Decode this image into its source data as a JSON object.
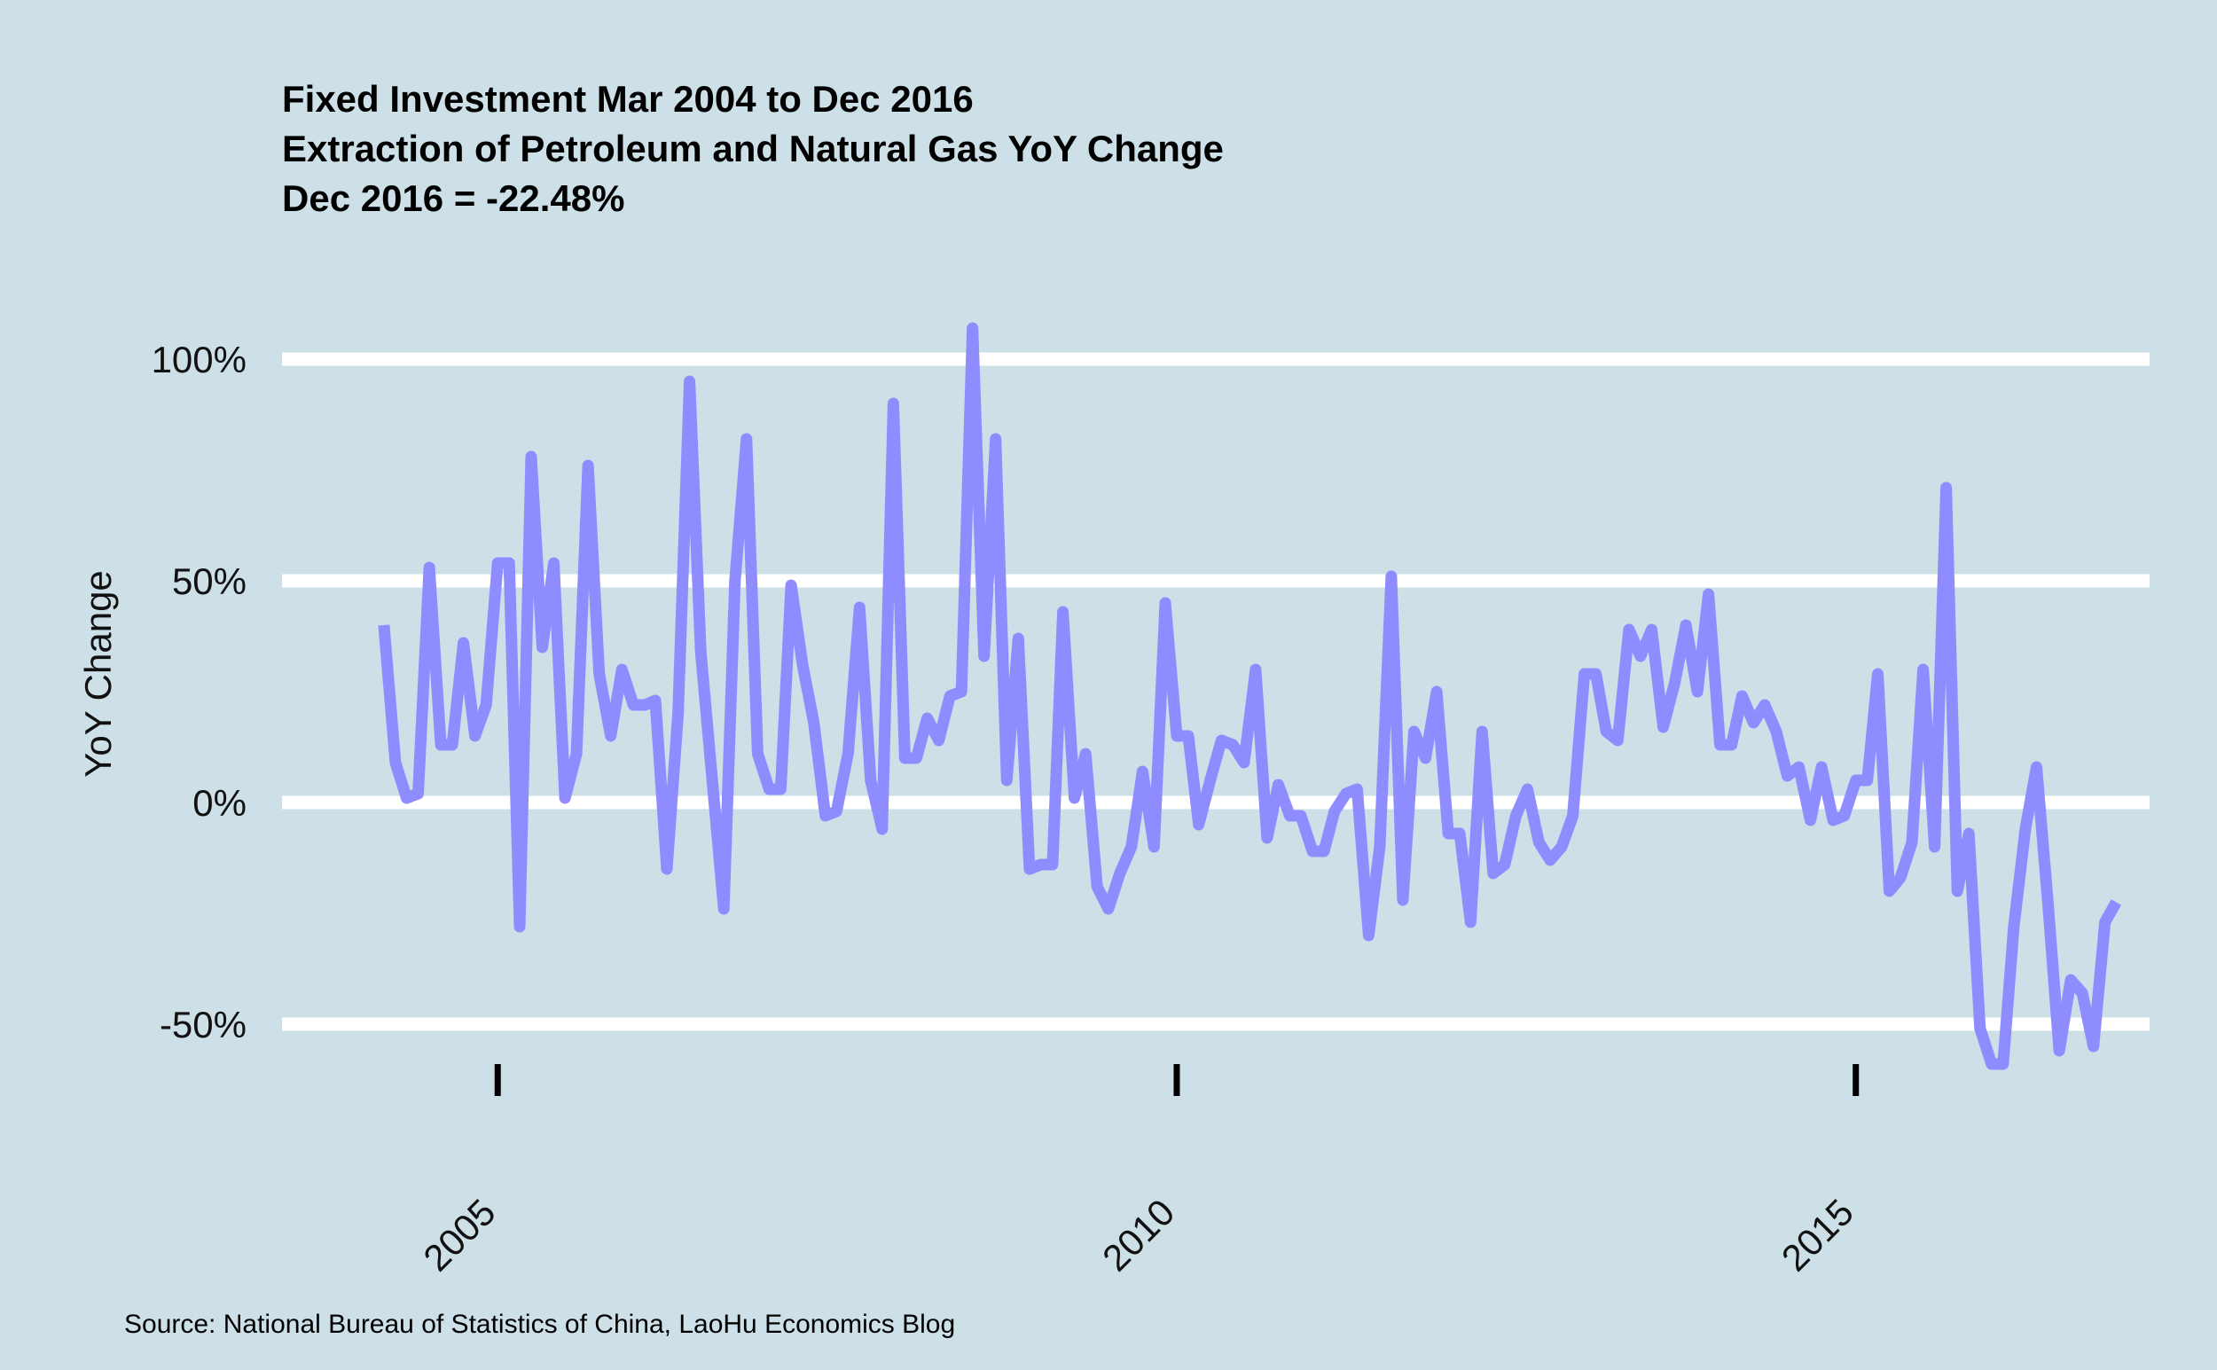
{
  "chart_data": {
    "type": "line",
    "title_lines": [
      "Fixed Investment Mar 2004 to Dec 2016",
      "Extraction of Petroleum and Natural Gas YoY Change",
      "Dec 2016 = -22.48%"
    ],
    "xlabel": "",
    "ylabel": "YoY Change",
    "source": "Source: National Bureau of Statistics of China, LaoHu Economics Blog",
    "xlim": [
      "2003-06-01",
      "2017-03-01"
    ],
    "ylim": [
      -60,
      115
    ],
    "x_ticks": [
      {
        "value": "2005-01-01",
        "label": "2005"
      },
      {
        "value": "2010-01-01",
        "label": "2010"
      },
      {
        "value": "2015-01-01",
        "label": "2015"
      }
    ],
    "y_ticks": [
      {
        "value": 100,
        "label": "100%"
      },
      {
        "value": 50,
        "label": "50%"
      },
      {
        "value": 0,
        "label": "0%"
      },
      {
        "value": -50,
        "label": "-50%"
      }
    ],
    "grid": "horizontal",
    "legend": "none",
    "colors": {
      "background": "#cddfe7",
      "gridline": "#ffffff",
      "line": "#8f8cff",
      "tick": "#000000"
    },
    "series": [
      {
        "x": [
          "2004-03",
          "2004-04",
          "2004-05",
          "2004-06",
          "2004-07",
          "2004-08",
          "2004-09",
          "2004-10",
          "2004-11",
          "2004-12",
          "2005-01",
          "2005-02",
          "2005-03",
          "2005-04",
          "2005-05",
          "2005-06",
          "2005-07",
          "2005-08",
          "2005-09",
          "2005-10",
          "2005-11",
          "2005-12",
          "2006-01",
          "2006-02",
          "2006-03",
          "2006-04",
          "2006-05",
          "2006-06",
          "2006-07",
          "2006-08",
          "2006-09",
          "2006-10",
          "2006-11",
          "2006-12",
          "2007-01",
          "2007-02",
          "2007-03",
          "2007-04",
          "2007-05",
          "2007-06",
          "2007-07",
          "2007-08",
          "2007-09",
          "2007-10",
          "2007-11",
          "2007-12",
          "2008-01",
          "2008-02",
          "2008-03",
          "2008-04",
          "2008-05",
          "2008-06",
          "2008-07",
          "2008-08",
          "2008-09",
          "2008-10",
          "2008-11",
          "2008-12",
          "2009-01",
          "2009-02",
          "2009-03",
          "2009-04",
          "2009-05",
          "2009-06",
          "2009-07",
          "2009-08",
          "2009-09",
          "2009-10",
          "2009-11",
          "2009-12",
          "2010-01",
          "2010-02",
          "2010-03",
          "2010-04",
          "2010-05",
          "2010-06",
          "2010-07",
          "2010-08",
          "2010-09",
          "2010-10",
          "2010-11",
          "2010-12",
          "2011-01",
          "2011-02",
          "2011-03",
          "2011-04",
          "2011-05",
          "2011-06",
          "2011-07",
          "2011-08",
          "2011-09",
          "2011-10",
          "2011-11",
          "2011-12",
          "2012-01",
          "2012-02",
          "2012-03",
          "2012-04",
          "2012-05",
          "2012-06",
          "2012-07",
          "2012-08",
          "2012-09",
          "2012-10",
          "2012-11",
          "2012-12",
          "2013-01",
          "2013-02",
          "2013-03",
          "2013-04",
          "2013-05",
          "2013-06",
          "2013-07",
          "2013-08",
          "2013-09",
          "2013-10",
          "2013-11",
          "2013-12",
          "2014-01",
          "2014-02",
          "2014-03",
          "2014-04",
          "2014-05",
          "2014-06",
          "2014-07",
          "2014-08",
          "2014-09",
          "2014-10",
          "2014-11",
          "2014-12",
          "2015-01",
          "2015-02",
          "2015-03",
          "2015-04",
          "2015-05",
          "2015-06",
          "2015-07",
          "2015-08",
          "2015-09",
          "2015-10",
          "2015-11",
          "2015-12",
          "2016-01",
          "2016-02",
          "2016-03",
          "2016-04",
          "2016-05",
          "2016-06",
          "2016-07",
          "2016-08",
          "2016-09",
          "2016-10",
          "2016-11",
          "2016-12"
        ],
        "values": [
          40,
          9,
          1,
          2,
          53,
          13,
          13,
          36,
          15,
          22,
          54,
          54,
          -28,
          78,
          35,
          54,
          1,
          11,
          76,
          29,
          15,
          30,
          22,
          22,
          23,
          -15,
          20,
          95,
          34,
          5,
          -24,
          50,
          82,
          11,
          3,
          3,
          49,
          31,
          18,
          -3,
          -2,
          11,
          44,
          5,
          -6,
          90,
          10,
          10,
          19,
          14,
          24,
          25,
          107,
          33,
          82,
          5,
          37,
          -15,
          -14,
          -14,
          43,
          1,
          11,
          -19,
          -24,
          -16,
          -10,
          7,
          -10,
          45,
          15,
          15,
          -5,
          5,
          14,
          13,
          9,
          30,
          -8,
          4,
          -3,
          -3,
          -11,
          -11,
          -2,
          2,
          3,
          -30,
          -10,
          51,
          -22,
          16,
          10,
          25,
          -7,
          -7,
          -27,
          16,
          -16,
          -14,
          -3,
          3,
          -9,
          -13,
          -10,
          -3,
          29,
          29,
          16,
          14,
          39,
          33,
          39,
          17,
          27,
          40,
          25,
          47,
          13,
          13,
          24,
          18,
          22,
          16,
          6,
          8,
          -4,
          8,
          -4,
          -3,
          5,
          5,
          29,
          -20,
          -17,
          -9,
          30,
          -10,
          71,
          -20,
          -7,
          -51,
          -59,
          -59,
          -28,
          -6,
          8,
          -23,
          -56,
          -40,
          -43,
          -55,
          -27,
          -22.48
        ]
      }
    ]
  }
}
